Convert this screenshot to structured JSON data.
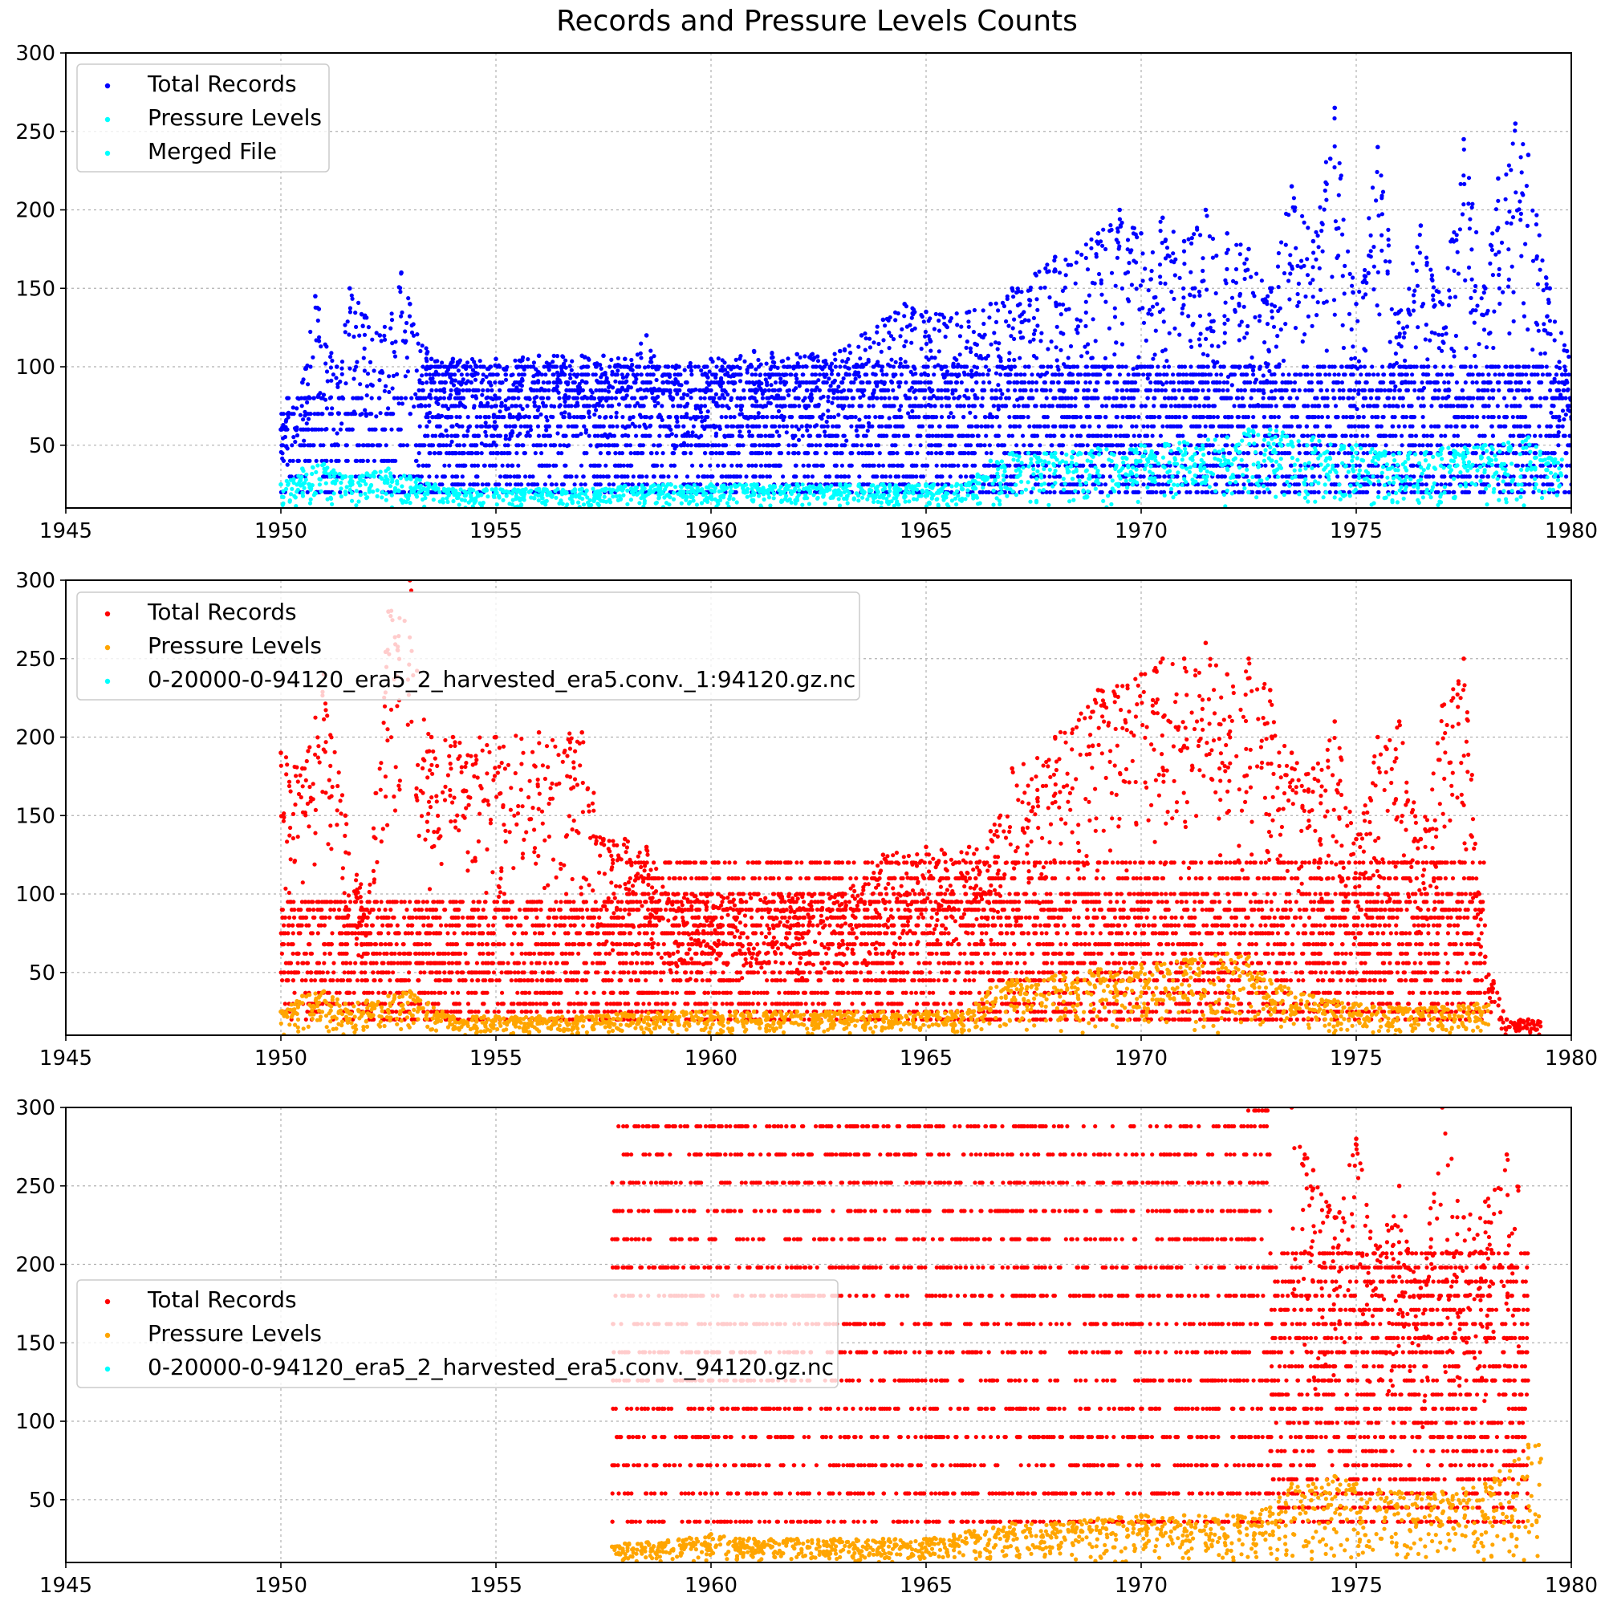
{
  "chart_data": {
    "title": "Records and Pressure Levels Counts",
    "panels": [
      {
        "type": "scatter",
        "xlim": [
          1945,
          1980
        ],
        "ylim": [
          10,
          300
        ],
        "xticks": [
          1945,
          1950,
          1955,
          1960,
          1965,
          1970,
          1975,
          1980
        ],
        "yticks": [
          50,
          100,
          150,
          200,
          250,
          300
        ],
        "grid": true,
        "legend_position": "top-left",
        "legend": [
          {
            "label": "Total Records",
            "color": "#0000ff"
          },
          {
            "label": "Pressure Levels",
            "color": "#00ffff"
          },
          {
            "label": "Merged File",
            "color": "#00ffff"
          }
        ],
        "series": [
          {
            "name": "Total Records",
            "color": "#0000ff",
            "x": [
              1950.0,
              1950.5,
              1950.8,
              1951.3,
              1951.6,
              1952.3,
              1952.8,
              1953.0,
              1953.5,
              1954.0,
              1955.0,
              1956.0,
              1957.0,
              1957.5,
              1958.0,
              1958.5,
              1959.0,
              1960.0,
              1961.0,
              1962.0,
              1963.0,
              1963.5,
              1964.0,
              1964.5,
              1965.0,
              1966.0,
              1966.5,
              1967.0,
              1968.0,
              1969.0,
              1969.5,
              1970.0,
              1970.5,
              1971.0,
              1971.5,
              1972.0,
              1972.5,
              1973.0,
              1973.5,
              1974.0,
              1974.5,
              1975.0,
              1975.5,
              1976.0,
              1976.5,
              1977.0,
              1977.5,
              1978.0,
              1978.3,
              1978.7,
              1979.0,
              1979.5,
              1979.9
            ],
            "y": [
              60,
              90,
              145,
              100,
              150,
              120,
              160,
              140,
              105,
              105,
              105,
              107,
              107,
              107,
              105,
              120,
              100,
              105,
              110,
              108,
              110,
              120,
              130,
              140,
              135,
              135,
              140,
              150,
              170,
              185,
              200,
              185,
              195,
              180,
              200,
              185,
              175,
              150,
              215,
              180,
              265,
              140,
              240,
              135,
              190,
              140,
              245,
              150,
              220,
              255,
              235,
              150,
              110
            ]
          },
          {
            "name": "Pressure Levels",
            "color": "#00ffff",
            "x": [
              1950.0,
              1950.5,
              1951.0,
              1951.5,
              1952.0,
              1952.5,
              1953.0,
              1954.0,
              1955.0,
              1956.0,
              1957.0,
              1958.0,
              1959.0,
              1960.0,
              1961.0,
              1962.0,
              1963.0,
              1964.0,
              1965.0,
              1966.0,
              1966.5,
              1967.0,
              1968.0,
              1969.0,
              1970.0,
              1971.0,
              1972.0,
              1972.5,
              1973.0,
              1974.0,
              1975.0,
              1976.0,
              1977.0,
              1978.0,
              1979.0,
              1979.5
            ],
            "y": [
              25,
              35,
              38,
              30,
              32,
              35,
              30,
              22,
              22,
              22,
              22,
              24,
              25,
              25,
              25,
              25,
              25,
              25,
              25,
              26,
              40,
              45,
              45,
              48,
              50,
              52,
              55,
              60,
              60,
              55,
              50,
              45,
              48,
              50,
              55,
              42
            ]
          }
        ],
        "bands": [
          {
            "color": "#0000ff",
            "x0": 1953.2,
            "x1": 1980,
            "values": [
              20,
              25,
              30,
              37,
              45,
              50,
              56,
              62,
              68,
              75,
              80,
              85,
              90,
              95,
              100
            ]
          },
          {
            "color": "#0000ff",
            "x0": 1950,
            "x1": 1953.2,
            "values": [
              20,
              30,
              40,
              50,
              60,
              70,
              80
            ]
          }
        ]
      },
      {
        "type": "scatter",
        "xlim": [
          1945,
          1980
        ],
        "ylim": [
          10,
          300
        ],
        "xticks": [
          1945,
          1950,
          1955,
          1960,
          1965,
          1970,
          1975,
          1980
        ],
        "yticks": [
          50,
          100,
          150,
          200,
          250,
          300
        ],
        "grid": true,
        "legend_position": "top-left",
        "legend": [
          {
            "label": "Total Records",
            "color": "#ff0000"
          },
          {
            "label": "Pressure Levels",
            "color": "#ffa500"
          },
          {
            "label": "0-20000-0-94120_era5_2_harvested_era5.conv._1:94120.gz.nc",
            "color": "#00ffff"
          }
        ],
        "series": [
          {
            "name": "Total Records",
            "color": "#ff0000",
            "x": [
              1950.0,
              1950.5,
              1951.0,
              1951.5,
              1952.0,
              1952.5,
              1953.0,
              1953.5,
              1954.0,
              1955.0,
              1956.0,
              1957.0,
              1957.5,
              1958.0,
              1958.5,
              1959.0,
              1960.0,
              1961.0,
              1962.0,
              1963.0,
              1964.0,
              1965.0,
              1966.0,
              1966.5,
              1967.0,
              1968.0,
              1969.0,
              1970.0,
              1970.5,
              1971.0,
              1971.5,
              1972.0,
              1972.5,
              1973.0,
              1973.5,
              1974.0,
              1974.5,
              1975.0,
              1975.5,
              1976.0,
              1976.5,
              1977.0,
              1977.5,
              1978.0,
              1978.5,
              1979.0
            ],
            "y": [
              190,
              180,
              240,
              150,
              90,
              280,
              300,
              200,
              200,
              200,
              203,
              203,
              135,
              135,
              130,
              100,
              100,
              100,
              100,
              100,
              125,
              130,
              130,
              140,
              180,
              200,
              230,
              240,
              250,
              250,
              260,
              240,
              250,
              230,
              190,
              180,
              210,
              135,
              200,
              210,
              135,
              220,
              250,
              60,
              20,
              20
            ]
          },
          {
            "name": "Pressure Levels",
            "color": "#ffa500",
            "x": [
              1950.0,
              1950.5,
              1951.0,
              1951.5,
              1952.0,
              1952.5,
              1953.0,
              1954.0,
              1955.0,
              1956.0,
              1957.0,
              1958.0,
              1959.0,
              1960.0,
              1961.0,
              1962.0,
              1963.0,
              1964.0,
              1965.0,
              1966.0,
              1966.5,
              1967.0,
              1968.0,
              1969.0,
              1970.0,
              1971.0,
              1972.0,
              1972.5,
              1973.0,
              1974.0,
              1975.0,
              1976.0,
              1977.0,
              1977.8
            ],
            "y": [
              25,
              35,
              38,
              30,
              32,
              35,
              38,
              22,
              22,
              22,
              22,
              24,
              25,
              25,
              25,
              25,
              25,
              25,
              25,
              26,
              40,
              45,
              48,
              52,
              55,
              58,
              62,
              60,
              45,
              35,
              30,
              28,
              28,
              30
            ]
          }
        ],
        "bands": [
          {
            "color": "#ff0000",
            "x0": 1950,
            "x1": 1978,
            "values": [
              20,
              25,
              30,
              37,
              45,
              50,
              56,
              62,
              68,
              75,
              80,
              85,
              90,
              95
            ]
          },
          {
            "color": "#ff0000",
            "x0": 1958,
            "x1": 1978,
            "values": [
              100,
              110,
              120
            ]
          }
        ]
      },
      {
        "type": "scatter",
        "xlim": [
          1945,
          1980
        ],
        "ylim": [
          10,
          300
        ],
        "xticks": [
          1945,
          1950,
          1955,
          1960,
          1965,
          1970,
          1975,
          1980
        ],
        "yticks": [
          50,
          100,
          150,
          200,
          250,
          300
        ],
        "grid": true,
        "legend_position": "center-left",
        "legend": [
          {
            "label": "Total Records",
            "color": "#ff0000"
          },
          {
            "label": "Pressure Levels",
            "color": "#ffa500"
          },
          {
            "label": "0-20000-0-94120_era5_2_harvested_era5.conv._94120.gz.nc",
            "color": "#00ffff"
          }
        ],
        "series": [
          {
            "name": "Total Records",
            "color": "#ff0000",
            "x": [
              1973.5,
              1974.0,
              1974.5,
              1975.0,
              1975.5,
              1976.0,
              1976.5,
              1977.0,
              1977.5,
              1978.0,
              1978.5
            ],
            "y": [
              300,
              260,
              230,
              280,
              210,
              250,
              185,
              300,
              230,
              240,
              270
            ]
          },
          {
            "name": "Pressure Levels",
            "color": "#ffa500",
            "x": [
              1957.7,
              1958.0,
              1959.0,
              1960.0,
              1961.0,
              1962.0,
              1963.0,
              1964.0,
              1965.0,
              1966.0,
              1967.0,
              1968.0,
              1969.0,
              1970.0,
              1971.0,
              1972.0,
              1973.0,
              1973.5,
              1974.0,
              1974.5,
              1975.0,
              1976.0,
              1977.0,
              1978.0,
              1979.0
            ],
            "y": [
              20,
              22,
              24,
              28,
              25,
              25,
              25,
              25,
              25,
              30,
              35,
              35,
              38,
              40,
              40,
              40,
              45,
              60,
              60,
              65,
              60,
              55,
              55,
              60,
              85
            ]
          }
        ],
        "bands": [
          {
            "color": "#ff0000",
            "x0": 1957.7,
            "x1": 1972.3,
            "values": [
              36,
              54,
              72,
              90,
              108,
              126,
              144,
              162,
              180,
              198,
              216,
              234,
              252,
              270,
              288
            ]
          },
          {
            "color": "#ff0000",
            "x0": 1972.3,
            "x1": 1973.0,
            "values": [
              36,
              54,
              72,
              90,
              108,
              126,
              144,
              162,
              180,
              198,
              216,
              234,
              252,
              270,
              288,
              298
            ]
          },
          {
            "color": "#ff0000",
            "x0": 1973.0,
            "x1": 1979.0,
            "values": [
              36,
              45,
              54,
              63,
              72,
              81,
              90,
              99,
              108,
              117,
              126,
              135,
              144,
              153,
              162,
              171,
              180,
              189,
              198,
              207
            ]
          }
        ]
      }
    ]
  }
}
